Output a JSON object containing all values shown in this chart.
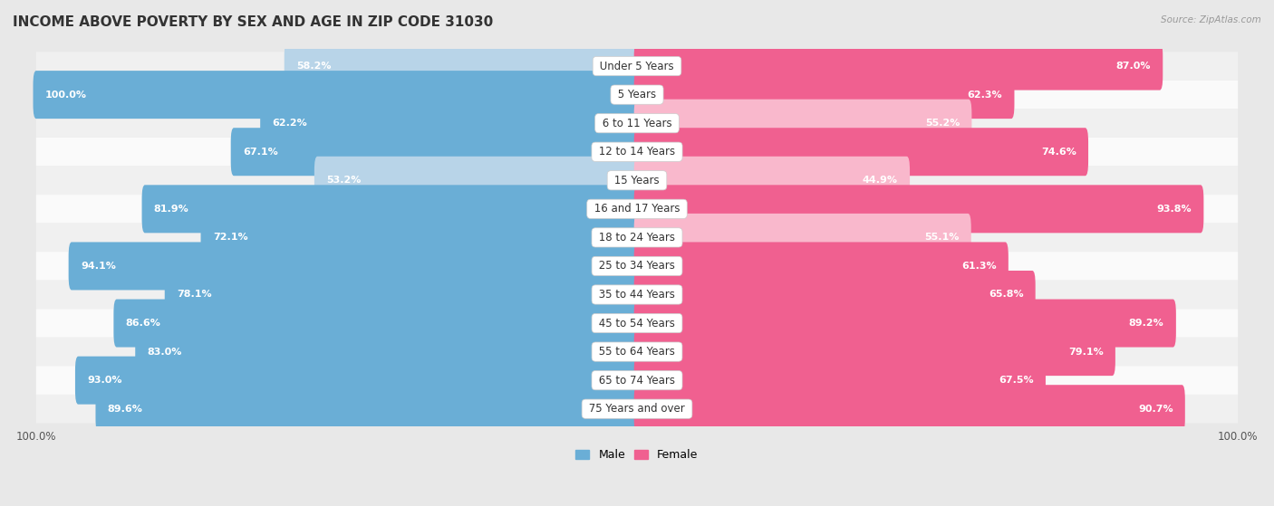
{
  "title": "INCOME ABOVE POVERTY BY SEX AND AGE IN ZIP CODE 31030",
  "source": "Source: ZipAtlas.com",
  "categories": [
    "Under 5 Years",
    "5 Years",
    "6 to 11 Years",
    "12 to 14 Years",
    "15 Years",
    "16 and 17 Years",
    "18 to 24 Years",
    "25 to 34 Years",
    "35 to 44 Years",
    "45 to 54 Years",
    "55 to 64 Years",
    "65 to 74 Years",
    "75 Years and over"
  ],
  "male_values": [
    58.2,
    100.0,
    62.2,
    67.1,
    53.2,
    81.9,
    72.1,
    94.1,
    78.1,
    86.6,
    83.0,
    93.0,
    89.6
  ],
  "female_values": [
    87.0,
    62.3,
    55.2,
    74.6,
    44.9,
    93.8,
    55.1,
    61.3,
    65.8,
    89.2,
    79.1,
    67.5,
    90.7
  ],
  "male_color_dark": "#6aaed6",
  "male_color_light": "#b8d4e8",
  "female_color_dark": "#f06090",
  "female_color_light": "#f9b8cc",
  "row_colors": [
    "#f0f0f0",
    "#fafafa"
  ],
  "bg_color": "#e8e8e8",
  "label_box_color": "#ffffff",
  "title_fontsize": 11,
  "label_fontsize": 8.5,
  "value_fontsize": 8,
  "max_val": 100.0,
  "threshold_dark": 60.0
}
